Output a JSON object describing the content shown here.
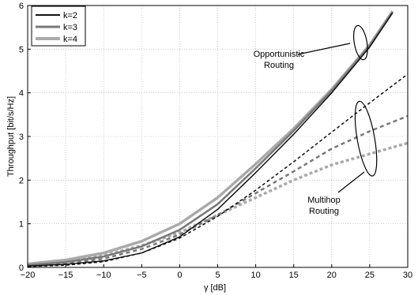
{
  "chart_data": {
    "type": "line",
    "title": "",
    "xlabel": "γ [dB]",
    "ylabel": "Throughput [bit/s/Hz]",
    "xlim": [
      -20,
      30
    ],
    "ylim": [
      0,
      6
    ],
    "xticks": [
      -20,
      -15,
      -10,
      -5,
      0,
      5,
      10,
      15,
      20,
      25,
      30
    ],
    "yticks": [
      0,
      1,
      2,
      3,
      4,
      5,
      6
    ],
    "grid": true,
    "legend_position": "top-left",
    "legend": [
      {
        "label": "k=2",
        "color": "#111111"
      },
      {
        "label": "k=3",
        "color": "#777777"
      },
      {
        "label": "k=4",
        "color": "#aaaaaa"
      }
    ],
    "annotations": [
      {
        "text": [
          "Opportunistic",
          "Routing"
        ]
      },
      {
        "text": [
          "Multihop",
          "Routing"
        ]
      }
    ],
    "series": [
      {
        "name": "k=2",
        "group": "Opportunistic Routing",
        "style": "solid",
        "color": "#111111",
        "x": [
          -20,
          -15,
          -10,
          -5,
          0,
          5,
          10,
          15,
          20,
          25,
          28
        ],
        "y": [
          0.03,
          0.07,
          0.15,
          0.33,
          0.7,
          1.33,
          2.17,
          3.05,
          4.0,
          5.05,
          5.83
        ]
      },
      {
        "name": "k=3",
        "group": "Opportunistic Routing",
        "style": "solid",
        "color": "#777777",
        "x": [
          -20,
          -15,
          -10,
          -5,
          0,
          5,
          10,
          15,
          20,
          25,
          28
        ],
        "y": [
          0.05,
          0.12,
          0.25,
          0.48,
          0.86,
          1.45,
          2.27,
          3.13,
          4.05,
          5.08,
          5.85
        ]
      },
      {
        "name": "k=4",
        "group": "Opportunistic Routing",
        "style": "solid",
        "color": "#aaaaaa",
        "x": [
          -20,
          -15,
          -10,
          -5,
          0,
          5,
          10,
          15,
          20,
          25,
          28
        ],
        "y": [
          0.08,
          0.17,
          0.33,
          0.6,
          1.0,
          1.6,
          2.37,
          3.18,
          4.08,
          5.1,
          5.87
        ]
      },
      {
        "name": "k=2",
        "group": "Multihop Routing",
        "style": "dashed",
        "color": "#111111",
        "x": [
          -20,
          -15,
          -10,
          -5,
          0,
          5,
          10,
          15,
          20,
          25,
          30
        ],
        "y": [
          0.02,
          0.05,
          0.13,
          0.33,
          0.67,
          1.17,
          1.77,
          2.42,
          3.1,
          3.77,
          4.43
        ]
      },
      {
        "name": "k=3",
        "group": "Multihop Routing",
        "style": "dashed",
        "color": "#777777",
        "x": [
          -20,
          -15,
          -10,
          -5,
          0,
          5,
          10,
          15,
          20,
          25,
          30
        ],
        "y": [
          0.03,
          0.08,
          0.2,
          0.42,
          0.75,
          1.2,
          1.7,
          2.2,
          2.72,
          3.12,
          3.47
        ]
      },
      {
        "name": "k=4",
        "group": "Multihop Routing",
        "style": "dashed",
        "color": "#aaaaaa",
        "x": [
          -20,
          -15,
          -10,
          -5,
          0,
          5,
          10,
          15,
          20,
          25,
          30
        ],
        "y": [
          0.05,
          0.13,
          0.27,
          0.5,
          0.8,
          1.2,
          1.6,
          2.0,
          2.35,
          2.6,
          2.85
        ]
      }
    ]
  }
}
